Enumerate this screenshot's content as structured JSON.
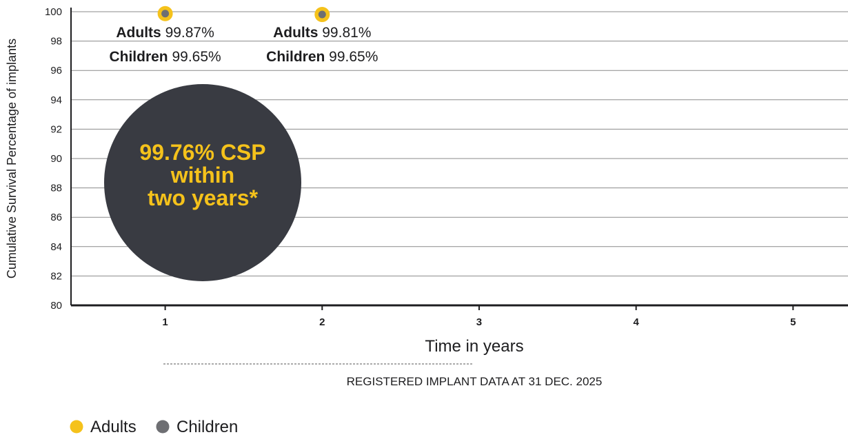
{
  "chart_data": {
    "type": "scatter",
    "ylabel": "Cumulative Survival Percentage of implants",
    "xlabel": "Time in years",
    "x_ticks": [
      "1",
      "2",
      "3",
      "4",
      "5"
    ],
    "y_ticks": [
      "80",
      "82",
      "84",
      "86",
      "88",
      "90",
      "92",
      "94",
      "96",
      "98",
      "100"
    ],
    "xlim": [
      0.4,
      5.35
    ],
    "ylim": [
      80,
      100
    ],
    "grid": true,
    "series": [
      {
        "name": "Adults",
        "color": "#f5c21b",
        "x": [
          1,
          2
        ],
        "values": [
          99.87,
          99.81
        ]
      },
      {
        "name": "Children",
        "color": "#6e6f73",
        "x": [
          1,
          2
        ],
        "values": [
          99.65,
          99.65
        ]
      }
    ],
    "annotations": [
      {
        "x": 1,
        "adults_label": "Adults",
        "adults_value": "99.87%",
        "children_label": "Children",
        "children_value": "99.65%"
      },
      {
        "x": 2,
        "adults_label": "Adults",
        "adults_value": "99.81%",
        "children_label": "Children",
        "children_value": "99.65%"
      }
    ],
    "callout": {
      "lines": [
        "99.76% CSP",
        "within",
        "two years*"
      ],
      "bg_color": "#393b42",
      "text_color": "#f5c21b"
    },
    "footnote": "REGISTERED IMPLANT DATA AT 31 DEC. 2025",
    "legend": {
      "position": "bottom-left",
      "items": [
        "Adults",
        "Children"
      ]
    }
  }
}
